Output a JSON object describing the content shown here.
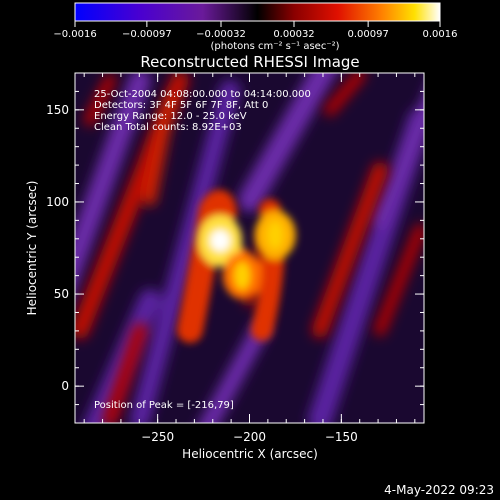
{
  "chart_data": {
    "type": "heatmap",
    "title": "Reconstructed RHESSI Image",
    "xlabel": "Heliocentric X (arcsec)",
    "ylabel": "Heliocentric Y (arcsec)",
    "xlim": [
      -295,
      -105
    ],
    "ylim": [
      -20,
      170
    ],
    "x_ticks": [
      "−250",
      "−200",
      "−150"
    ],
    "y_ticks": [
      "0",
      "50",
      "100",
      "150"
    ],
    "colorbar": {
      "ticks": [
        "−0.0016",
        "−0.00097",
        "−0.00032",
        "0.00032",
        "0.00097",
        "0.0016"
      ],
      "unit_label": "(photons cm⁻² s⁻¹ asec⁻²)",
      "range": [
        -0.0016,
        0.0016
      ]
    },
    "annotations": [
      "25-Oct-2004 04:08:00.000 to 04:14:00.000",
      "Detectors: 3F 4F 5F 6F 7F 8F, Att 0",
      "Energy Range: 12.0 - 25.0 keV",
      "Clean     Total counts: 8.92E+03"
    ],
    "peak_label": "Position of Peak = [-216,79]",
    "peak_position": [
      -216,
      79
    ],
    "sources": [
      {
        "x": -216,
        "y": 79,
        "value": 0.0016
      },
      {
        "x": -186,
        "y": 82,
        "value": 0.0012
      },
      {
        "x": -204,
        "y": 60,
        "value": 0.0009
      }
    ],
    "footer_date": "4-May-2022 09:23"
  },
  "colors": {
    "background": "#000000",
    "colorbar_stops": [
      "#0000ff",
      "#7000a0",
      "#000000",
      "#b00000",
      "#ff8000",
      "#ffff00",
      "#ffffff"
    ]
  }
}
